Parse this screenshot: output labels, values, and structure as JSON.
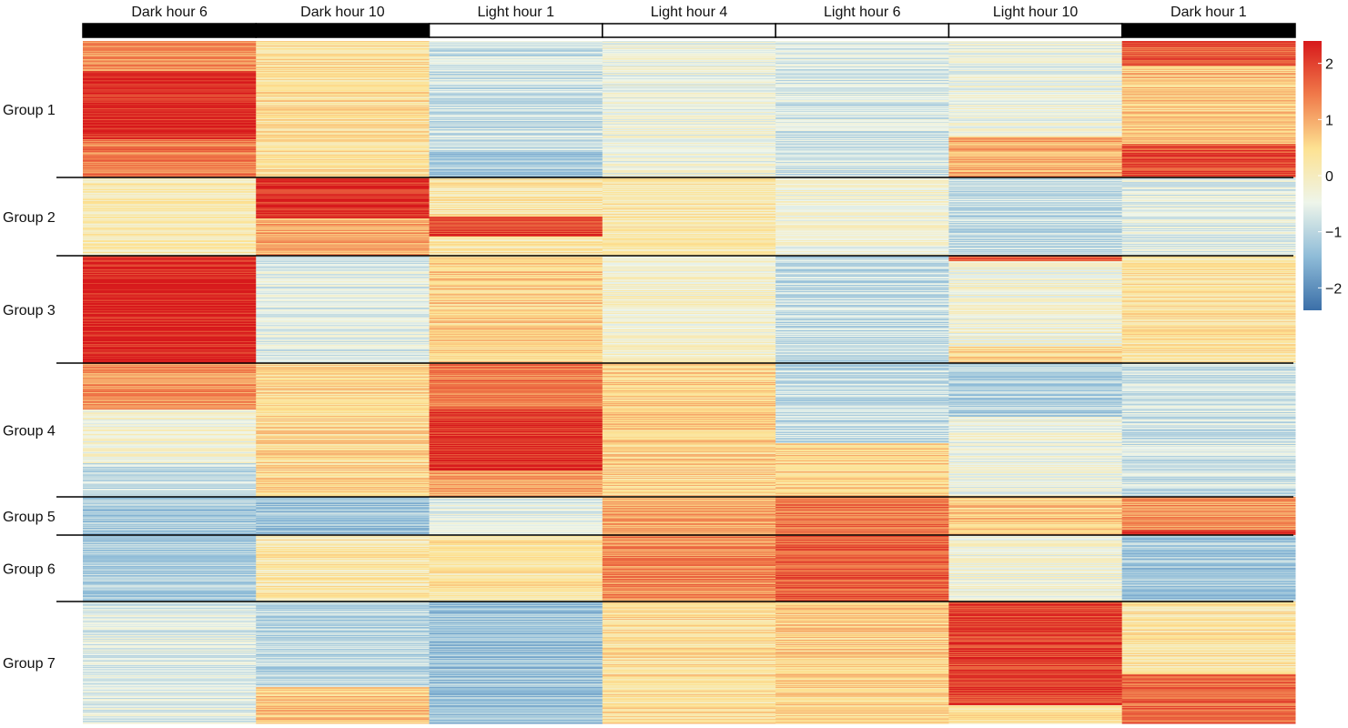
{
  "chart_data": {
    "type": "heatmap",
    "title": "",
    "xlabel": "",
    "ylabel": "",
    "columns": [
      "Dark hour 6",
      "Dark hour 10",
      "Light hour 1",
      "Light hour 4",
      "Light hour 6",
      "Light hour 10",
      "Dark hour 1"
    ],
    "photoperiod": [
      "dark",
      "dark",
      "light",
      "light",
      "light",
      "light",
      "dark"
    ],
    "groups": [
      {
        "label": "Group 1",
        "rows": 150,
        "segments": [
          [
            [
              0.22,
              1.2
            ],
            [
              0.5,
              2.2
            ],
            [
              0.28,
              1.4
            ]
          ],
          [
            [
              1.0,
              0.4
            ]
          ],
          [
            [
              0.8,
              -0.8
            ],
            [
              0.2,
              -1.3
            ]
          ],
          [
            [
              1.0,
              -0.4
            ]
          ],
          [
            [
              1.0,
              -0.7
            ]
          ],
          [
            [
              0.7,
              -0.4
            ],
            [
              0.3,
              1.0
            ]
          ],
          [
            [
              0.18,
              1.7
            ],
            [
              0.57,
              0.7
            ],
            [
              0.25,
              1.9
            ]
          ]
        ]
      },
      {
        "label": "Group 2",
        "rows": 86,
        "segments": [
          [
            [
              1.0,
              0.1
            ]
          ],
          [
            [
              0.52,
              2.2
            ],
            [
              0.48,
              1.0
            ]
          ],
          [
            [
              0.5,
              0.3
            ],
            [
              0.25,
              2.0
            ],
            [
              0.25,
              0.2
            ]
          ],
          [
            [
              1.0,
              0.2
            ]
          ],
          [
            [
              1.0,
              -0.3
            ]
          ],
          [
            [
              1.0,
              -0.9
            ]
          ],
          [
            [
              1.0,
              -0.6
            ]
          ]
        ]
      },
      {
        "label": "Group 3",
        "rows": 118,
        "segments": [
          [
            [
              1.0,
              2.3
            ]
          ],
          [
            [
              1.0,
              -0.6
            ]
          ],
          [
            [
              1.0,
              0.6
            ]
          ],
          [
            [
              1.0,
              -0.2
            ]
          ],
          [
            [
              1.0,
              -0.9
            ]
          ],
          [
            [
              0.05,
              1.8
            ],
            [
              0.8,
              -0.3
            ],
            [
              0.15,
              0.5
            ]
          ],
          [
            [
              1.0,
              0.3
            ]
          ]
        ]
      },
      {
        "label": "Group 4",
        "rows": 147,
        "segments": [
          [
            [
              0.35,
              1.2
            ],
            [
              0.4,
              -0.3
            ],
            [
              0.25,
              -0.9
            ]
          ],
          [
            [
              1.0,
              0.5
            ]
          ],
          [
            [
              0.35,
              1.4
            ],
            [
              0.45,
              2.2
            ],
            [
              0.2,
              1.0
            ]
          ],
          [
            [
              1.0,
              0.6
            ]
          ],
          [
            [
              0.6,
              -0.9
            ],
            [
              0.4,
              0.6
            ]
          ],
          [
            [
              0.4,
              -1.1
            ],
            [
              0.6,
              -0.4
            ]
          ],
          [
            [
              1.0,
              -0.8
            ]
          ]
        ]
      },
      {
        "label": "Group 5",
        "rows": 42,
        "segments": [
          [
            [
              1.0,
              -1.2
            ]
          ],
          [
            [
              1.0,
              -1.3
            ]
          ],
          [
            [
              1.0,
              -0.6
            ]
          ],
          [
            [
              1.0,
              1.0
            ]
          ],
          [
            [
              1.0,
              1.5
            ]
          ],
          [
            [
              1.0,
              0.7
            ]
          ],
          [
            [
              0.85,
              1.2
            ],
            [
              0.15,
              2.0
            ]
          ]
        ]
      },
      {
        "label": "Group 6",
        "rows": 73,
        "segments": [
          [
            [
              1.0,
              -1.1
            ]
          ],
          [
            [
              1.0,
              0.2
            ]
          ],
          [
            [
              1.0,
              0.3
            ]
          ],
          [
            [
              1.0,
              1.3
            ]
          ],
          [
            [
              1.0,
              1.7
            ]
          ],
          [
            [
              1.0,
              -0.3
            ]
          ],
          [
            [
              1.0,
              -1.2
            ]
          ]
        ]
      },
      {
        "label": "Group 7",
        "rows": 134,
        "segments": [
          [
            [
              1.0,
              -0.6
            ]
          ],
          [
            [
              0.7,
              -1.0
            ],
            [
              0.3,
              0.7
            ]
          ],
          [
            [
              1.0,
              -1.3
            ]
          ],
          [
            [
              1.0,
              0.4
            ]
          ],
          [
            [
              1.0,
              0.6
            ]
          ],
          [
            [
              0.85,
              2.0
            ],
            [
              0.15,
              0.4
            ]
          ],
          [
            [
              0.6,
              0.3
            ],
            [
              0.4,
              1.6
            ]
          ]
        ]
      }
    ],
    "colorbar": {
      "min": -2.4,
      "max": 2.4,
      "ticks": [
        -2,
        -1,
        0,
        1,
        2
      ],
      "tick_labels": [
        "−2",
        "−1",
        "0",
        "1",
        "2"
      ],
      "colors": [
        "#3b6fa8",
        "#8fbcd8",
        "#eef5ea",
        "#fde292",
        "#f07a4a",
        "#d7191c"
      ]
    }
  }
}
